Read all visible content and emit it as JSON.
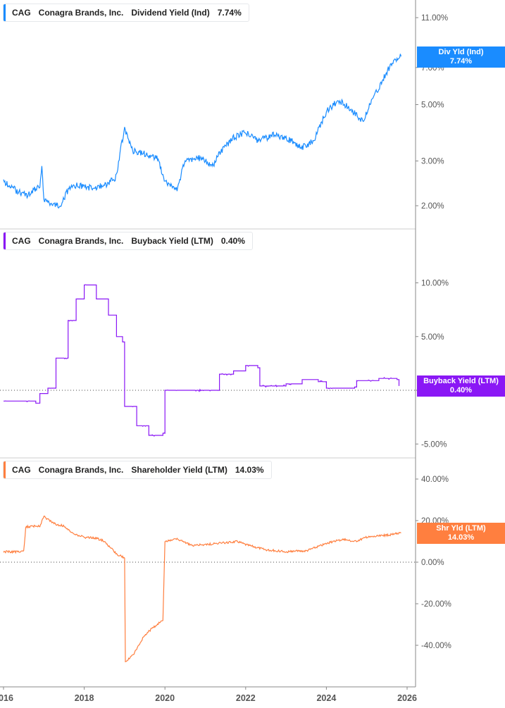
{
  "chart_data": [
    {
      "type": "line",
      "ticker": "CAG",
      "company": "Conagra Brands, Inc.",
      "metric": "Dividend Yield (Ind)",
      "value_label": "7.74%",
      "badge_title": "Div Yld (Ind)",
      "badge_value": "7.74%",
      "color": "#1a8cff",
      "scale": "log",
      "ylim": [
        1.7,
        12.5
      ],
      "yticks": [
        "11.00%",
        "7.00%",
        "5.00%",
        "3.00%",
        "2.00%"
      ],
      "ytick_values": [
        11,
        7,
        5,
        3,
        2
      ],
      "x": [
        2016.0,
        2016.3,
        2016.6,
        2016.9,
        2016.95,
        2017.0,
        2017.4,
        2017.6,
        2017.8,
        2018.2,
        2018.5,
        2018.8,
        2019.0,
        2019.2,
        2019.5,
        2019.8,
        2020.0,
        2020.3,
        2020.5,
        2020.8,
        2021.2,
        2021.4,
        2021.7,
        2022.0,
        2022.3,
        2022.7,
        2023.0,
        2023.4,
        2023.7,
        2024.0,
        2024.3,
        2024.6,
        2024.9,
        2025.1,
        2025.3,
        2025.6,
        2025.85
      ],
      "y": [
        2.5,
        2.3,
        2.2,
        2.4,
        2.9,
        2.1,
        2.0,
        2.3,
        2.4,
        2.35,
        2.4,
        2.6,
        4.0,
        3.3,
        3.2,
        3.1,
        2.5,
        2.3,
        3.0,
        3.1,
        2.9,
        3.3,
        3.7,
        3.9,
        3.6,
        3.8,
        3.7,
        3.4,
        3.6,
        4.7,
        5.2,
        4.8,
        4.3,
        5.1,
        5.8,
        7.2,
        7.74
      ]
    },
    {
      "type": "line",
      "ticker": "CAG",
      "company": "Conagra Brands, Inc.",
      "metric": "Buyback Yield (LTM)",
      "value_label": "0.40%",
      "badge_title": "Buyback Yield (LTM)",
      "badge_value": "0.40%",
      "color": "#8a17f5",
      "scale": "linear",
      "ylim": [
        -6,
        14
      ],
      "yticks": [
        "10.00%",
        "5.00%",
        "0.00%",
        "-5.00%"
      ],
      "ytick_values": [
        10,
        5,
        0,
        -5
      ],
      "x": [
        2016.0,
        2016.8,
        2016.9,
        2017.1,
        2017.3,
        2017.6,
        2017.8,
        2018.0,
        2018.3,
        2018.6,
        2018.8,
        2018.95,
        2019.0,
        2019.3,
        2019.6,
        2019.95,
        2020.0,
        2021.3,
        2021.35,
        2021.7,
        2022.0,
        2022.3,
        2022.35,
        2023.0,
        2023.4,
        2023.8,
        2024.0,
        2024.7,
        2024.75,
        2025.3,
        2025.75,
        2025.8
      ],
      "y": [
        -1.0,
        -1.2,
        -0.3,
        0.2,
        3.0,
        6.5,
        8.5,
        9.8,
        8.5,
        7.0,
        5.0,
        4.5,
        -1.5,
        -3.3,
        -4.2,
        -4.0,
        0,
        0,
        1.5,
        1.8,
        2.3,
        2.1,
        0.4,
        0.6,
        1.0,
        0.8,
        0.2,
        0.3,
        0.9,
        1.1,
        1.0,
        0.4
      ]
    },
    {
      "type": "line",
      "ticker": "CAG",
      "company": "Conagra Brands, Inc.",
      "metric": "Shareholder Yield (LTM)",
      "value_label": "14.03%",
      "badge_title": "Shr Yld (LTM)",
      "badge_value": "14.03%",
      "color": "#ff7f3f",
      "scale": "linear",
      "ylim": [
        -55,
        45
      ],
      "yticks": [
        "40.00%",
        "20.00%",
        "0.00%",
        "-20.00%",
        "-40.00%"
      ],
      "ytick_values": [
        40,
        20,
        0,
        -20,
        -40
      ],
      "x": [
        2016.0,
        2016.5,
        2016.55,
        2016.9,
        2017.0,
        2017.3,
        2017.5,
        2017.7,
        2018.0,
        2018.3,
        2018.5,
        2018.8,
        2019.0,
        2019.02,
        2019.2,
        2019.5,
        2019.8,
        2019.95,
        2020.0,
        2020.3,
        2020.7,
        2021.3,
        2021.8,
        2022.0,
        2022.5,
        2023.0,
        2023.5,
        2024.0,
        2024.4,
        2024.7,
        2025.0,
        2025.5,
        2025.85
      ],
      "y": [
        5,
        5,
        17,
        17.5,
        22,
        18,
        17.5,
        14,
        12,
        11.5,
        10,
        4,
        2,
        -48,
        -45,
        -35,
        -30,
        -28,
        10,
        11,
        8,
        9,
        10,
        8.5,
        6,
        5,
        5.5,
        9,
        11,
        10,
        12,
        13,
        14.03
      ]
    }
  ],
  "xaxis": {
    "ticks": [
      "2016",
      "2018",
      "2020",
      "2022",
      "2024",
      "2026"
    ],
    "tick_values": [
      2016,
      2018,
      2020,
      2022,
      2024,
      2026
    ]
  }
}
